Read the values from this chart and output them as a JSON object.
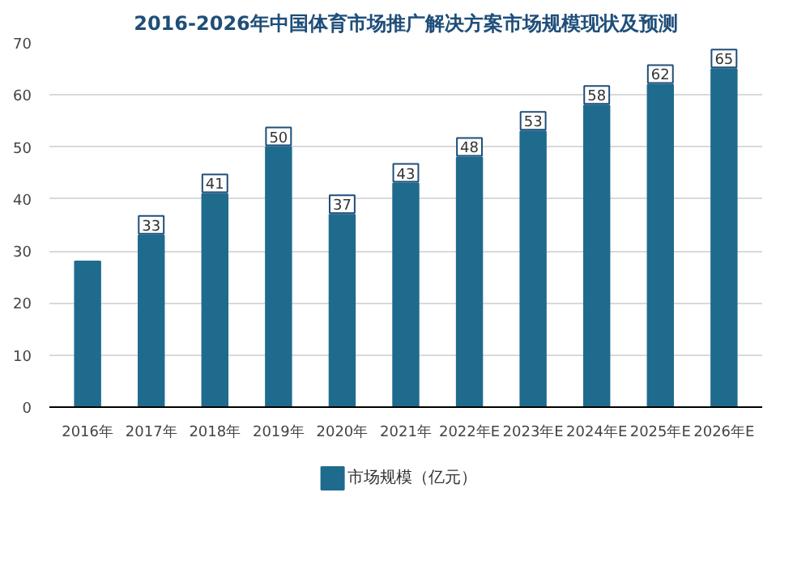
{
  "chart_data": {
    "type": "bar",
    "title": "2016-2026年中国体育市场推广解决方案市场规模现状及预测",
    "categories": [
      "2016年",
      "2017年",
      "2018年",
      "2019年",
      "2020年",
      "2021年",
      "2022年E",
      "2023年E",
      "2024年E",
      "2025年E",
      "2026年E"
    ],
    "series": [
      {
        "name": "市场规模（亿元）",
        "color": "#1f6b8e",
        "values": [
          28,
          33,
          41,
          50,
          37,
          43,
          48,
          53,
          58,
          62,
          65
        ],
        "value_labels": [
          null,
          "33",
          "41",
          "50",
          "37",
          "43",
          "48",
          "53",
          "58",
          "62",
          "65"
        ]
      }
    ],
    "ylim": [
      0,
      70
    ],
    "yticks": [
      0,
      10,
      20,
      30,
      40,
      50,
      60,
      70
    ],
    "grid": "y",
    "legend": "bottom"
  }
}
